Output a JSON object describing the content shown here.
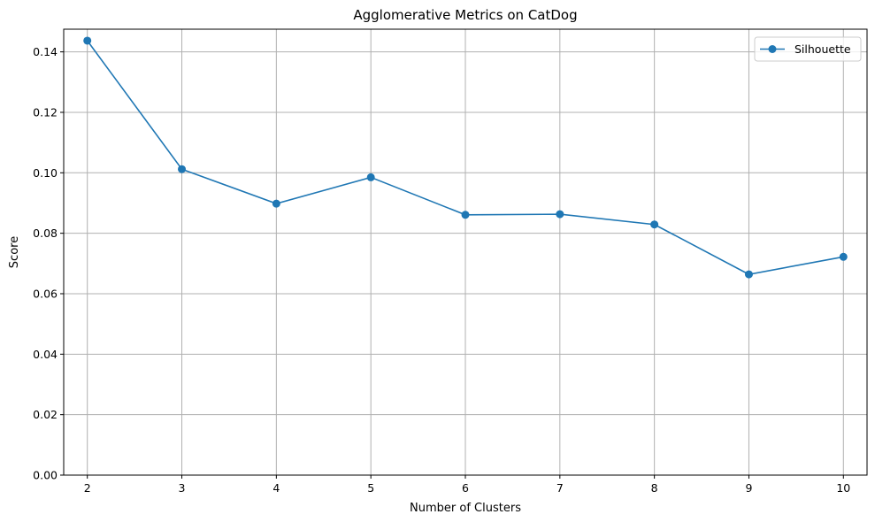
{
  "chart_data": {
    "type": "line",
    "title": "Agglomerative Metrics on CatDog",
    "xlabel": "Number of Clusters",
    "ylabel": "Score",
    "x": [
      2,
      3,
      4,
      5,
      6,
      7,
      8,
      9,
      10
    ],
    "xlim": [
      1.75,
      10.25
    ],
    "ylim": [
      0,
      0.1475
    ],
    "xticks": [
      "2",
      "3",
      "4",
      "5",
      "6",
      "7",
      "8",
      "9",
      "10"
    ],
    "yticks": [
      "0.00",
      "0.02",
      "0.04",
      "0.06",
      "0.08",
      "0.10",
      "0.12",
      "0.14"
    ],
    "ytick_values": [
      0.0,
      0.02,
      0.04,
      0.06,
      0.08,
      0.1,
      0.12,
      0.14
    ],
    "grid": true,
    "legend": "upper right",
    "series": [
      {
        "name": "Silhouette",
        "color": "#1f77b4",
        "marker": "circle",
        "values": [
          0.1437,
          0.1012,
          0.0898,
          0.0985,
          0.0861,
          0.0863,
          0.0829,
          0.0664,
          0.0722
        ]
      }
    ]
  }
}
